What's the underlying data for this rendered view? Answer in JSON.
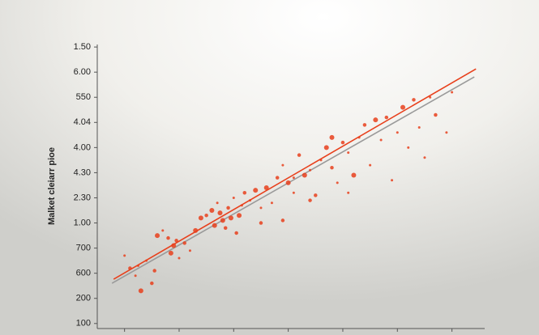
{
  "chart_data": {
    "type": "scatter",
    "y_label": "Malket cleiarr pioe",
    "xlim": [
      0,
      7.1
    ],
    "xticks": [
      0.5,
      1.5,
      2.5,
      3.5,
      4.5,
      5.5,
      6.5
    ],
    "ylim": [
      -0.2,
      11.1
    ],
    "yticks": [
      {
        "value": 0,
        "label": "100"
      },
      {
        "value": 1,
        "label": "200"
      },
      {
        "value": 2,
        "label": "600"
      },
      {
        "value": 3,
        "label": "700"
      },
      {
        "value": 4,
        "label": "1.00"
      },
      {
        "value": 5,
        "label": "2.30"
      },
      {
        "value": 6,
        "label": "4.30"
      },
      {
        "value": 7,
        "label": "4.00"
      },
      {
        "value": 8,
        "label": "4.04"
      },
      {
        "value": 9,
        "label": "550"
      },
      {
        "value": 10,
        "label": "6.00"
      },
      {
        "value": 11,
        "label": "1.50"
      }
    ],
    "color": "#e8401c",
    "x": [
      0.5,
      0.6,
      0.7,
      0.8,
      0.9,
      1.0,
      1.1,
      1.2,
      1.3,
      1.4,
      1.5,
      1.6,
      1.7,
      1.8,
      1.9,
      2.0,
      2.1,
      2.2,
      2.3,
      2.4,
      2.5,
      2.6,
      2.7,
      2.8,
      2.9,
      3.0,
      3.0,
      3.1,
      3.2,
      3.3,
      3.4,
      3.5,
      3.6,
      3.7,
      3.8,
      3.9,
      4.0,
      4.1,
      4.2,
      4.3,
      4.4,
      4.5,
      4.6,
      4.7,
      4.8,
      4.9,
      5.0,
      5.1,
      5.2,
      5.3,
      5.4,
      5.5,
      5.6,
      5.7,
      5.8,
      6.0,
      6.1,
      6.2,
      6.4,
      6.5,
      2.15,
      2.25,
      2.35,
      2.45,
      2.55,
      2.65,
      1.35,
      1.45,
      0.75,
      1.05,
      3.4,
      3.6,
      3.9,
      4.3,
      4.6,
      5.9
    ],
    "values": [
      2.7,
      2.2,
      1.9,
      1.3,
      2.5,
      1.6,
      3.5,
      3.7,
      3.4,
      3.1,
      2.6,
      3.2,
      2.9,
      3.7,
      4.2,
      4.3,
      4.5,
      4.8,
      4.1,
      4.6,
      5.0,
      4.3,
      5.2,
      4.9,
      5.3,
      4.0,
      4.6,
      5.4,
      4.8,
      5.8,
      6.3,
      5.6,
      5.2,
      6.7,
      5.9,
      6.1,
      5.1,
      6.5,
      7.0,
      6.2,
      5.6,
      7.2,
      6.8,
      5.9,
      7.4,
      7.9,
      6.3,
      8.1,
      7.3,
      8.2,
      5.7,
      7.6,
      8.6,
      7.0,
      8.9,
      6.6,
      9.0,
      8.3,
      7.6,
      9.2,
      3.9,
      4.4,
      3.8,
      4.2,
      3.6,
      4.7,
      2.8,
      3.3,
      2.3,
      2.1,
      4.1,
      5.8,
      4.9,
      7.4,
      5.2,
      7.8
    ],
    "sizes": [
      2,
      3,
      2,
      4,
      2,
      3,
      4,
      2,
      3,
      4,
      2,
      3,
      2,
      4,
      4,
      3,
      4,
      2,
      4,
      3,
      2,
      4,
      3,
      2,
      4,
      3,
      2,
      4,
      2,
      3,
      2,
      4,
      2,
      3,
      4,
      2,
      3,
      2,
      4,
      3,
      2,
      3,
      2,
      4,
      2,
      3,
      2,
      4,
      2,
      3,
      2,
      2,
      4,
      2,
      3,
      2,
      2,
      3,
      2,
      2,
      4,
      4,
      3,
      4,
      3,
      2,
      4,
      3,
      2,
      3,
      3,
      2,
      3,
      4,
      2,
      2
    ],
    "lines": [
      {
        "color": "#e8401c",
        "x": [
          0.3,
          6.94
        ],
        "values": [
          1.76,
          10.13
        ]
      },
      {
        "color": "#9a9a9a",
        "x": [
          0.27,
          6.91
        ],
        "values": [
          1.6,
          9.81
        ]
      }
    ]
  }
}
